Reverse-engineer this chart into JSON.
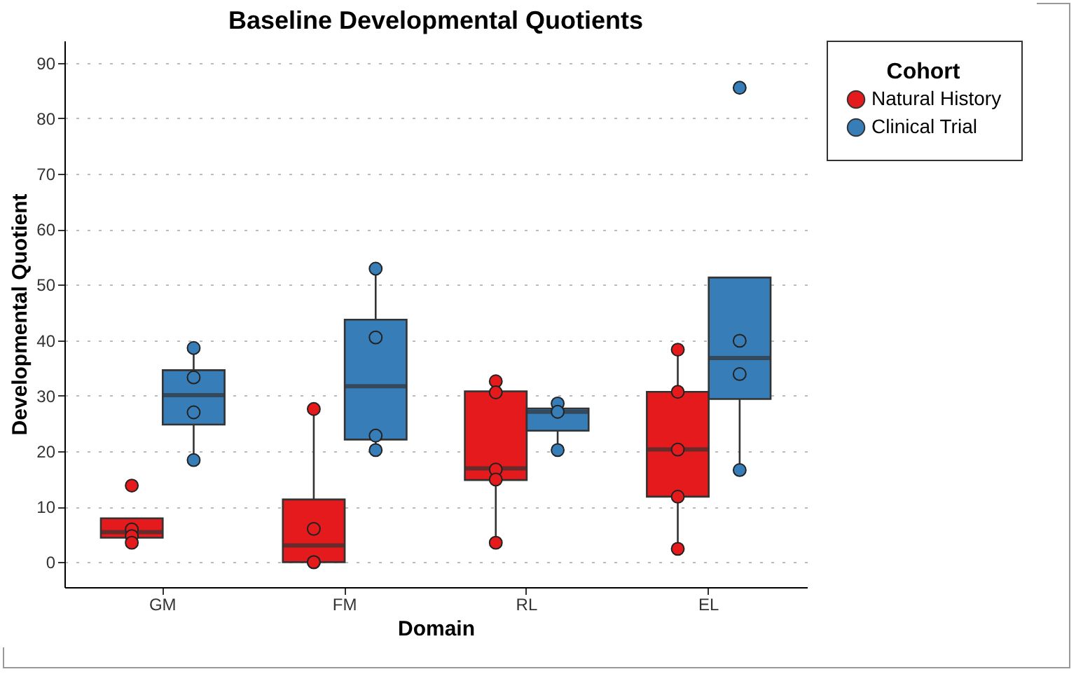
{
  "chart_data": {
    "type": "box",
    "title": "Baseline Developmental Quotients",
    "xlabel": "Domain",
    "ylabel": "Developmental Quotient",
    "legend_title": "Cohort",
    "categories": [
      "GM",
      "FM",
      "RL",
      "EL"
    ],
    "ylim": [
      -4.5,
      94
    ],
    "yticks": [
      0,
      10,
      20,
      30,
      40,
      50,
      60,
      70,
      80,
      90
    ],
    "grid": "y",
    "legend": "right",
    "series": [
      {
        "name": "Natural History",
        "color": "#e41a1c",
        "boxes": [
          {
            "low": 3.5,
            "q1": 4.4,
            "median": 5.4,
            "q3": 7.9,
            "high": 7.9
          },
          {
            "low": 0,
            "q1": 0,
            "median": 3.0,
            "q3": 11.3,
            "high": 27.6
          },
          {
            "low": 3.5,
            "q1": 14.8,
            "median": 16.9,
            "q3": 30.8,
            "high": 32.6
          },
          {
            "low": 2.4,
            "q1": 11.8,
            "median": 20.3,
            "q3": 30.7,
            "high": 38.3
          }
        ]
      },
      {
        "name": "Clinical Trial",
        "color": "#377eb8",
        "boxes": [
          {
            "low": 18.4,
            "q1": 24.8,
            "median": 30.1,
            "q3": 34.6,
            "high": 38.6
          },
          {
            "low": 20.2,
            "q1": 22.1,
            "median": 31.7,
            "q3": 43.7,
            "high": 52.9
          },
          {
            "low": 20.2,
            "q1": 23.7,
            "median": 27.1,
            "q3": 27.7,
            "high": 28.6
          },
          {
            "low": 16.6,
            "q1": 29.4,
            "median": 36.8,
            "q3": 51.3,
            "high": 51.3
          }
        ]
      },
      {
        "type": "scatter",
        "color": "#e41a1c",
        "x": [
          "GM",
          "GM",
          "GM",
          "GM",
          "FM",
          "FM",
          "FM",
          "FM",
          "RL",
          "RL",
          "RL",
          "RL",
          "RL",
          "EL",
          "EL",
          "EL",
          "EL",
          "EL"
        ],
        "values": [
          13.8,
          5.9,
          4.7,
          3.5,
          27.6,
          6.0,
          0,
          0,
          32.6,
          30.6,
          16.7,
          14.9,
          3.5,
          38.3,
          30.7,
          20.3,
          11.8,
          2.4
        ]
      },
      {
        "type": "scatter",
        "color": "#377eb8",
        "x": [
          "GM",
          "GM",
          "GM",
          "GM",
          "FM",
          "FM",
          "FM",
          "FM",
          "RL",
          "RL",
          "RL",
          "EL",
          "EL",
          "EL",
          "EL"
        ],
        "values": [
          38.6,
          33.3,
          27.0,
          18.4,
          52.9,
          40.5,
          22.8,
          20.2,
          28.6,
          27.1,
          20.2,
          85.5,
          39.9,
          33.9,
          16.6
        ]
      }
    ]
  }
}
